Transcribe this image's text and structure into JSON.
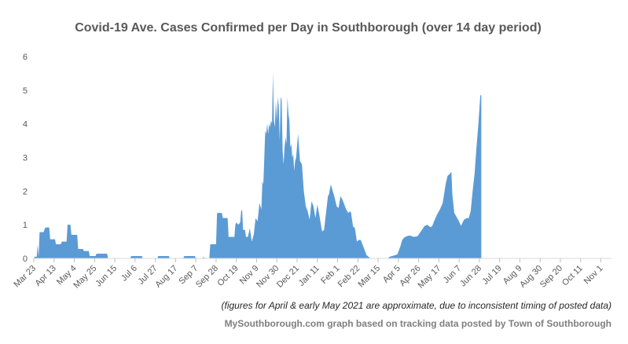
{
  "chart_data": {
    "type": "area",
    "title": "Covid-19 Ave. Cases Confirmed per Day in Southborough (over 14 day period)",
    "note": "(figures for April & early May 2021 are approximate, due to inconsistent timing of posted data)",
    "source": "MySouthborough.com graph based on tracking data posted by Town of Southborough",
    "xlabel": "",
    "ylabel": "",
    "ylim": [
      0,
      6
    ],
    "yticks": [
      0,
      1,
      2,
      3,
      4,
      5,
      6
    ],
    "xlim": [
      0,
      599
    ],
    "x_tick_labels": [
      {
        "day": 0,
        "label": "Mar 23"
      },
      {
        "day": 21,
        "label": "Apr 13"
      },
      {
        "day": 42,
        "label": "May 4"
      },
      {
        "day": 63,
        "label": "May 25"
      },
      {
        "day": 84,
        "label": "Jun 15"
      },
      {
        "day": 105,
        "label": "Jul 6"
      },
      {
        "day": 126,
        "label": "Jul 27"
      },
      {
        "day": 147,
        "label": "Aug 17"
      },
      {
        "day": 168,
        "label": "Sep 7"
      },
      {
        "day": 189,
        "label": "Sep 28"
      },
      {
        "day": 210,
        "label": "Oct 19"
      },
      {
        "day": 231,
        "label": "Nov 9"
      },
      {
        "day": 252,
        "label": "Nov 30"
      },
      {
        "day": 273,
        "label": "Dec 21"
      },
      {
        "day": 294,
        "label": "Jan 11"
      },
      {
        "day": 315,
        "label": "Feb 1"
      },
      {
        "day": 336,
        "label": "Feb 22"
      },
      {
        "day": 357,
        "label": "Mar 15"
      },
      {
        "day": 378,
        "label": "Apr 5"
      },
      {
        "day": 399,
        "label": "Apr 26"
      },
      {
        "day": 420,
        "label": "May 17"
      },
      {
        "day": 441,
        "label": "Jun 7"
      },
      {
        "day": 462,
        "label": "Jun 28"
      },
      {
        "day": 483,
        "label": "Jul 19"
      },
      {
        "day": 504,
        "label": "Aug 9"
      },
      {
        "day": 525,
        "label": "Aug 30"
      },
      {
        "day": 546,
        "label": "Sep 20"
      },
      {
        "day": 567,
        "label": "Oct 11"
      },
      {
        "day": 588,
        "label": "Nov 1"
      }
    ],
    "series": [
      {
        "color": "#5b9bd5",
        "points": [
          [
            0,
            0
          ],
          [
            1,
            0.05
          ],
          [
            3,
            0.05
          ],
          [
            4,
            0.4
          ],
          [
            5,
            0.05
          ],
          [
            6,
            0.78
          ],
          [
            10,
            0.78
          ],
          [
            12,
            0.92
          ],
          [
            16,
            0.92
          ],
          [
            17,
            0.57
          ],
          [
            22,
            0.57
          ],
          [
            23,
            0.42
          ],
          [
            28,
            0.42
          ],
          [
            29,
            0.5
          ],
          [
            34,
            0.5
          ],
          [
            35,
            1.0
          ],
          [
            38,
            1.0
          ],
          [
            39,
            0.7
          ],
          [
            45,
            0.7
          ],
          [
            46,
            0.28
          ],
          [
            51,
            0.28
          ],
          [
            52,
            0.22
          ],
          [
            57,
            0.22
          ],
          [
            58,
            0.07
          ],
          [
            64,
            0.07
          ],
          [
            65,
            0.14
          ],
          [
            76,
            0.14
          ],
          [
            77,
            0
          ],
          [
            100,
            0
          ],
          [
            101,
            0.07
          ],
          [
            112,
            0.07
          ],
          [
            113,
            0
          ],
          [
            128,
            0
          ],
          [
            129,
            0.07
          ],
          [
            140,
            0.07
          ],
          [
            141,
            0
          ],
          [
            155,
            0
          ],
          [
            156,
            0.07
          ],
          [
            167,
            0.07
          ],
          [
            168,
            0
          ],
          [
            175,
            0
          ],
          [
            176,
            0.05
          ],
          [
            177,
            0
          ],
          [
            182,
            0
          ],
          [
            183,
            0.42
          ],
          [
            189,
            0.42
          ],
          [
            190,
            1.35
          ],
          [
            195,
            1.35
          ],
          [
            196,
            1.2
          ],
          [
            201,
            1.2
          ],
          [
            202,
            0.64
          ],
          [
            208,
            0.64
          ],
          [
            209,
            1.0
          ],
          [
            210,
            1.07
          ],
          [
            212,
            1.0
          ],
          [
            214,
            1.07
          ],
          [
            215,
            1.4
          ],
          [
            216,
            1.45
          ],
          [
            217,
            0.85
          ],
          [
            219,
            0.85
          ],
          [
            220,
            0.64
          ],
          [
            222,
            0.64
          ],
          [
            224,
            0.9
          ],
          [
            226,
            0.5
          ],
          [
            228,
            0.7
          ],
          [
            230,
            1.2
          ],
          [
            232,
            1.1
          ],
          [
            234,
            1.65
          ],
          [
            236,
            1.45
          ],
          [
            237,
            2.3
          ],
          [
            238,
            2.2
          ],
          [
            239,
            3.0
          ],
          [
            240,
            3.8
          ],
          [
            241,
            3.7
          ],
          [
            242,
            4.0
          ],
          [
            243,
            3.7
          ],
          [
            244,
            4.0
          ],
          [
            245,
            3.9
          ],
          [
            246,
            4.1
          ],
          [
            247,
            4.0
          ],
          [
            248,
            5.5
          ],
          [
            249,
            4.1
          ],
          [
            250,
            3.9
          ],
          [
            251,
            4.7
          ],
          [
            252,
            4.1
          ],
          [
            253,
            4.8
          ],
          [
            254,
            4.5
          ],
          [
            255,
            3.5
          ],
          [
            256,
            4.8
          ],
          [
            257,
            4.7
          ],
          [
            258,
            3.2
          ],
          [
            259,
            2.8
          ],
          [
            260,
            3.3
          ],
          [
            261,
            3.6
          ],
          [
            262,
            3.4
          ],
          [
            263,
            4.8
          ],
          [
            264,
            4.3
          ],
          [
            265,
            4.1
          ],
          [
            266,
            3.3
          ],
          [
            267,
            3.4
          ],
          [
            268,
            3.0
          ],
          [
            269,
            3.1
          ],
          [
            270,
            2.6
          ],
          [
            271,
            2.9
          ],
          [
            272,
            3.0
          ],
          [
            274,
            3.7
          ],
          [
            276,
            2.9
          ],
          [
            278,
            2.8
          ],
          [
            280,
            2.0
          ],
          [
            282,
            1.55
          ],
          [
            284,
            1.4
          ],
          [
            286,
            1.15
          ],
          [
            288,
            1.7
          ],
          [
            290,
            1.55
          ],
          [
            292,
            1.2
          ],
          [
            294,
            1.6
          ],
          [
            296,
            1.3
          ],
          [
            298,
            0.95
          ],
          [
            299,
            0.8
          ],
          [
            301,
            0.85
          ],
          [
            303,
            1.35
          ],
          [
            305,
            1.85
          ],
          [
            306,
            1.9
          ],
          [
            308,
            2.2
          ],
          [
            310,
            2.0
          ],
          [
            312,
            1.8
          ],
          [
            314,
            1.55
          ],
          [
            316,
            1.5
          ],
          [
            318,
            1.85
          ],
          [
            320,
            1.75
          ],
          [
            322,
            1.6
          ],
          [
            324,
            1.45
          ],
          [
            326,
            1.35
          ],
          [
            328,
            1.4
          ],
          [
            329,
            1.35
          ],
          [
            331,
            0.95
          ],
          [
            333,
            0.9
          ],
          [
            335,
            0.5
          ],
          [
            337,
            0.55
          ],
          [
            339,
            0.55
          ],
          [
            341,
            0.4
          ],
          [
            343,
            0.25
          ],
          [
            345,
            0.1
          ],
          [
            347,
            0.05
          ],
          [
            349,
            0
          ],
          [
            367,
            0
          ],
          [
            369,
            0.05
          ],
          [
            375,
            0.1
          ],
          [
            377,
            0.12
          ],
          [
            380,
            0.35
          ],
          [
            382,
            0.55
          ],
          [
            384,
            0.62
          ],
          [
            386,
            0.65
          ],
          [
            388,
            0.67
          ],
          [
            390,
            0.68
          ],
          [
            394,
            0.64
          ],
          [
            398,
            0.66
          ],
          [
            400,
            0.75
          ],
          [
            402,
            0.83
          ],
          [
            405,
            0.96
          ],
          [
            408,
            1.0
          ],
          [
            411,
            0.93
          ],
          [
            413,
            0.95
          ],
          [
            415,
            1.1
          ],
          [
            418,
            1.3
          ],
          [
            421,
            1.45
          ],
          [
            424,
            1.65
          ],
          [
            427,
            2.2
          ],
          [
            429,
            2.45
          ],
          [
            431,
            2.5
          ],
          [
            433,
            2.57
          ],
          [
            434,
            1.9
          ],
          [
            436,
            1.35
          ],
          [
            438,
            1.25
          ],
          [
            440,
            1.15
          ],
          [
            443,
            0.97
          ],
          [
            446,
            1.15
          ],
          [
            449,
            1.2
          ],
          [
            451,
            1.2
          ],
          [
            453,
            1.4
          ],
          [
            455,
            2.0
          ],
          [
            457,
            2.5
          ],
          [
            459,
            3.3
          ],
          [
            461,
            4.0
          ],
          [
            463,
            4.85
          ],
          [
            464,
            4.85
          ],
          [
            464,
            0
          ]
        ]
      }
    ]
  }
}
